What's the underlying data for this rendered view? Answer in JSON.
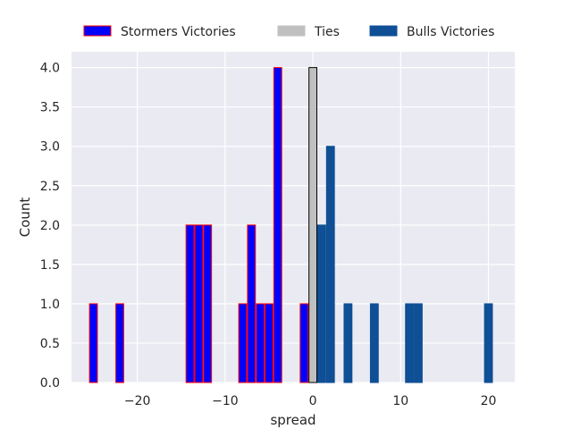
{
  "chart_data": {
    "type": "bar",
    "xlabel": "spread",
    "ylabel": "Count",
    "xlim": [
      -27.5,
      23
    ],
    "ylim": [
      0,
      4.2
    ],
    "xticks": [
      -20,
      -10,
      0,
      10,
      20
    ],
    "xtick_labels": [
      "−20",
      "−10",
      "0",
      "10",
      "20"
    ],
    "yticks": [
      0,
      0.5,
      1,
      1.5,
      2,
      2.5,
      3,
      3.5,
      4
    ],
    "ytick_labels": [
      "0.0",
      "0.5",
      "1.0",
      "1.5",
      "2.0",
      "2.5",
      "3.0",
      "3.5",
      "4.0"
    ],
    "grid": true,
    "legend_position": "top",
    "bar_width": 0.9,
    "series": [
      {
        "name": "Stormers Victories",
        "fill": "#0000ff",
        "edge": "#ff0000",
        "x": [
          -25,
          -22,
          -14,
          -13,
          -12,
          -8,
          -7,
          -6,
          -5,
          -4,
          -1
        ],
        "values": [
          1,
          1,
          2,
          2,
          2,
          1,
          2,
          1,
          1,
          4,
          1
        ]
      },
      {
        "name": "Ties",
        "fill": "#c0c0c0",
        "edge": "#000000",
        "x": [
          0
        ],
        "values": [
          4
        ]
      },
      {
        "name": "Bulls Victories",
        "fill": "#0f4f95",
        "edge": "#0f4f95",
        "x": [
          1,
          2,
          4,
          7,
          11,
          12,
          20
        ],
        "values": [
          2,
          3,
          1,
          1,
          1,
          1,
          1
        ]
      }
    ]
  }
}
